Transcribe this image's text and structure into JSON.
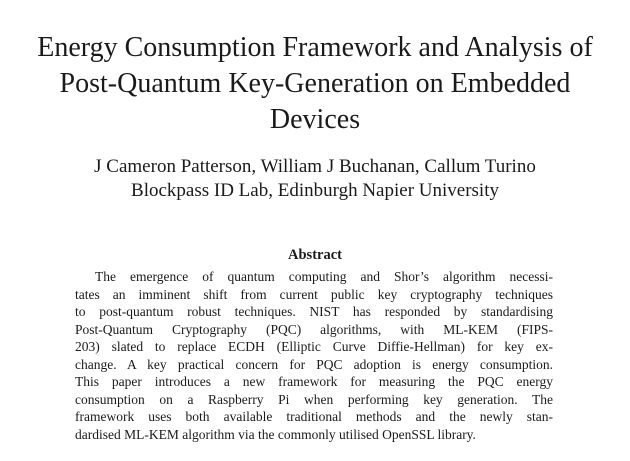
{
  "paper": {
    "title": "Energy Consumption Framework and Analysis of Post-Quantum Key-Generation on Embedded Devices",
    "authors": "J Cameron Patterson, William J Buchanan, Callum Turino",
    "affiliation": "Blockpass ID Lab, Edinburgh Napier University",
    "abstract_heading": "Abstract",
    "abstract_lines": [
      "The emergence of quantum computing and Shor’s algorithm necessi-",
      "tates an imminent shift from current public key cryptography techniques",
      "to post-quantum robust techniques. NIST has responded by standardising",
      "Post-Quantum Cryptography (PQC) algorithms, with ML-KEM (FIPS-",
      "203) slated to replace ECDH (Elliptic Curve Diffie-Hellman) for key ex-",
      "change. A key practical concern for PQC adoption is energy consumption.",
      "This paper introduces a new framework for measuring the PQC energy",
      "consumption on a Raspberry Pi when performing key generation. The",
      "framework uses both available traditional methods and the newly stan-",
      "dardised ML-KEM algorithm via the commonly utilised OpenSSL library."
    ]
  }
}
